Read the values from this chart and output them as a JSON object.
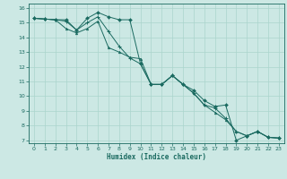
{
  "xlabel": "Humidex (Indice chaleur)",
  "bg_color": "#cce8e4",
  "grid_color": "#aad4cc",
  "line_color": "#1a6a60",
  "xlim": [
    -0.5,
    23.5
  ],
  "ylim": [
    6.8,
    16.3
  ],
  "yticks": [
    7,
    8,
    9,
    10,
    11,
    12,
    13,
    14,
    15,
    16
  ],
  "xticks": [
    0,
    1,
    2,
    3,
    4,
    5,
    6,
    7,
    8,
    9,
    10,
    11,
    12,
    13,
    14,
    15,
    16,
    17,
    18,
    19,
    20,
    21,
    22,
    23
  ],
  "line1_x": [
    0,
    1,
    2,
    3,
    4,
    5,
    6,
    7,
    8,
    9,
    10,
    11,
    12,
    13,
    14,
    15,
    16,
    17,
    18,
    19,
    20,
    21,
    22,
    23
  ],
  "line1_y": [
    15.3,
    15.25,
    15.2,
    15.2,
    14.5,
    15.3,
    15.7,
    15.4,
    15.2,
    15.2,
    12.2,
    10.8,
    10.8,
    11.4,
    10.8,
    10.4,
    9.7,
    9.3,
    9.4,
    7.0,
    7.3,
    7.6,
    7.2,
    7.15
  ],
  "line2_x": [
    0,
    1,
    2,
    3,
    4,
    5,
    6,
    7,
    8,
    9,
    10,
    11,
    12,
    13,
    14,
    15,
    16,
    17,
    18,
    19,
    20,
    21,
    22,
    23
  ],
  "line2_y": [
    15.3,
    15.25,
    15.2,
    14.6,
    14.3,
    14.6,
    15.1,
    13.3,
    13.0,
    12.65,
    12.55,
    10.8,
    10.8,
    11.4,
    10.8,
    10.2,
    9.4,
    8.9,
    8.4,
    7.6,
    7.3,
    7.6,
    7.2,
    7.15
  ],
  "line3_x": [
    0,
    1,
    2,
    3,
    4,
    5,
    6,
    7,
    8,
    9,
    10,
    11,
    12,
    13,
    14,
    15,
    16,
    17,
    18,
    19,
    20,
    21,
    22,
    23
  ],
  "line3_y": [
    15.3,
    15.25,
    15.2,
    15.1,
    14.5,
    15.0,
    15.4,
    14.4,
    13.4,
    12.6,
    12.2,
    10.8,
    10.8,
    11.4,
    10.8,
    10.2,
    9.4,
    9.2,
    8.5,
    7.6,
    7.3,
    7.6,
    7.2,
    7.15
  ]
}
